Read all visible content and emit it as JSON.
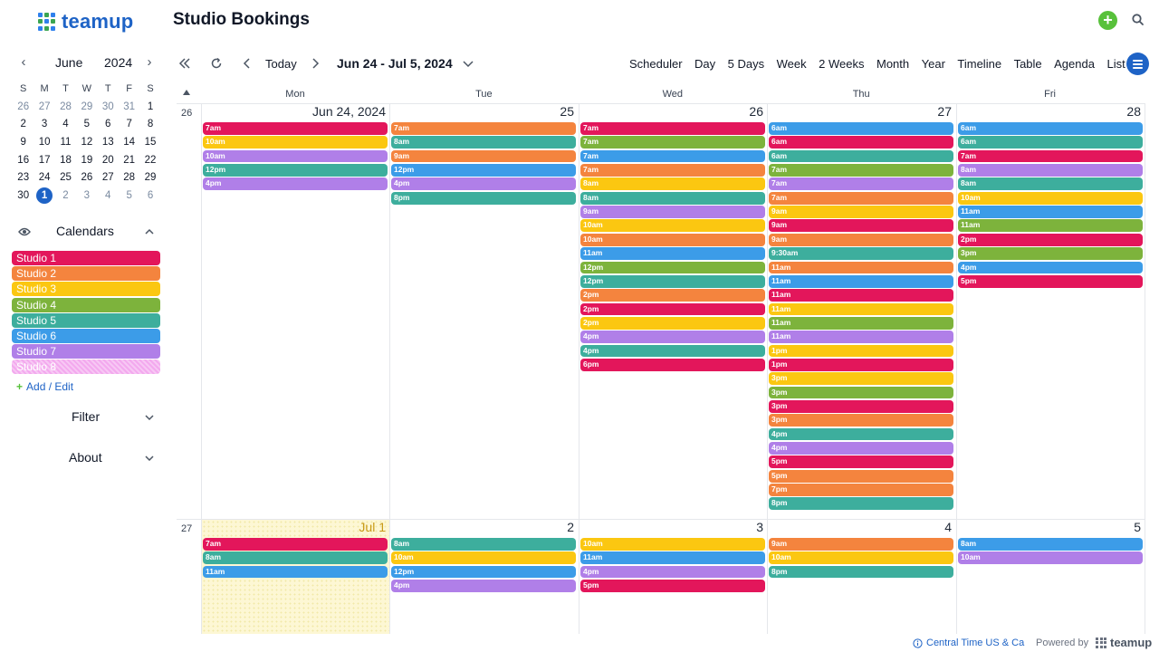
{
  "header": {
    "logo_text": "teamup",
    "title": "Studio Bookings",
    "add_icon": "plus-circle-icon",
    "search_icon": "search-icon"
  },
  "colors": {
    "Studio 1": "#e3165b",
    "Studio 2": "#f4843e",
    "Studio 3": "#fbc711",
    "Studio 4": "#7db33c",
    "Studio 5": "#3dae9d",
    "Studio 6": "#3c9ce8",
    "Studio 7": "#b07fe8",
    "Studio 8": "#f3a9ee",
    "accent": "#1e63c6",
    "green": "#58c13b"
  },
  "mini_calendar": {
    "month": "June",
    "year": "2024",
    "weekdays": [
      "S",
      "M",
      "T",
      "W",
      "T",
      "F",
      "S"
    ],
    "weeks": [
      [
        "26",
        "27",
        "28",
        "29",
        "30",
        "31",
        "1"
      ],
      [
        "2",
        "3",
        "4",
        "5",
        "6",
        "7",
        "8"
      ],
      [
        "9",
        "10",
        "11",
        "12",
        "13",
        "14",
        "15"
      ],
      [
        "16",
        "17",
        "18",
        "19",
        "20",
        "21",
        "22"
      ],
      [
        "23",
        "24",
        "25",
        "26",
        "27",
        "28",
        "29"
      ],
      [
        "30",
        "1",
        "2",
        "3",
        "4",
        "5",
        "6"
      ]
    ],
    "today": "1"
  },
  "sidebar": {
    "calendars_label": "Calendars",
    "calendars": [
      {
        "name": "Studio 1",
        "color": "#e3165b"
      },
      {
        "name": "Studio 2",
        "color": "#f4843e"
      },
      {
        "name": "Studio 3",
        "color": "#fbc711"
      },
      {
        "name": "Studio 4",
        "color": "#7db33c"
      },
      {
        "name": "Studio 5",
        "color": "#3dae9d"
      },
      {
        "name": "Studio 6",
        "color": "#3c9ce8"
      },
      {
        "name": "Studio 7",
        "color": "#b07fe8"
      },
      {
        "name": "Studio 8",
        "color": "#f3a9ee"
      }
    ],
    "add_edit_label": "Add / Edit",
    "filter_label": "Filter",
    "about_label": "About"
  },
  "toolbar": {
    "today_label": "Today",
    "date_range": "Jun 24 - Jul 5, 2024",
    "views": [
      "Scheduler",
      "Day",
      "5 Days",
      "Week",
      "2 Weeks",
      "Month",
      "Year",
      "Timeline",
      "Table",
      "Agenda",
      "List"
    ]
  },
  "calendar": {
    "weekday_headers": [
      "Mon",
      "Tue",
      "Wed",
      "Thu",
      "Fri"
    ],
    "weeks": [
      {
        "week_number": "26",
        "days": [
          {
            "label": "Jun 24, 2024",
            "today": false,
            "events": [
              {
                "time": "7am",
                "cal": "Studio 1"
              },
              {
                "time": "10am",
                "cal": "Studio 3"
              },
              {
                "time": "10am",
                "cal": "Studio 7"
              },
              {
                "time": "12pm",
                "cal": "Studio 5"
              },
              {
                "time": "4pm",
                "cal": "Studio 7"
              }
            ]
          },
          {
            "label": "25",
            "today": false,
            "events": [
              {
                "time": "7am",
                "cal": "Studio 2"
              },
              {
                "time": "8am",
                "cal": "Studio 5"
              },
              {
                "time": "9am",
                "cal": "Studio 2"
              },
              {
                "time": "12pm",
                "cal": "Studio 6"
              },
              {
                "time": "4pm",
                "cal": "Studio 7"
              },
              {
                "time": "8pm",
                "cal": "Studio 5"
              }
            ]
          },
          {
            "label": "26",
            "today": false,
            "events": [
              {
                "time": "7am",
                "cal": "Studio 1"
              },
              {
                "time": "7am",
                "cal": "Studio 4"
              },
              {
                "time": "7am",
                "cal": "Studio 6"
              },
              {
                "time": "7am",
                "cal": "Studio 2"
              },
              {
                "time": "8am",
                "cal": "Studio 3"
              },
              {
                "time": "8am",
                "cal": "Studio 5"
              },
              {
                "time": "9am",
                "cal": "Studio 7"
              },
              {
                "time": "10am",
                "cal": "Studio 3"
              },
              {
                "time": "10am",
                "cal": "Studio 2"
              },
              {
                "time": "11am",
                "cal": "Studio 6"
              },
              {
                "time": "12pm",
                "cal": "Studio 4"
              },
              {
                "time": "12pm",
                "cal": "Studio 5"
              },
              {
                "time": "2pm",
                "cal": "Studio 2"
              },
              {
                "time": "2pm",
                "cal": "Studio 1"
              },
              {
                "time": "2pm",
                "cal": "Studio 3"
              },
              {
                "time": "4pm",
                "cal": "Studio 7"
              },
              {
                "time": "4pm",
                "cal": "Studio 5"
              },
              {
                "time": "6pm",
                "cal": "Studio 1"
              }
            ]
          },
          {
            "label": "27",
            "today": false,
            "events": [
              {
                "time": "6am",
                "cal": "Studio 6"
              },
              {
                "time": "6am",
                "cal": "Studio 1"
              },
              {
                "time": "6am",
                "cal": "Studio 5"
              },
              {
                "time": "7am",
                "cal": "Studio 4"
              },
              {
                "time": "7am",
                "cal": "Studio 7"
              },
              {
                "time": "7am",
                "cal": "Studio 2"
              },
              {
                "time": "9am",
                "cal": "Studio 3"
              },
              {
                "time": "9am",
                "cal": "Studio 1"
              },
              {
                "time": "9am",
                "cal": "Studio 2"
              },
              {
                "time": "9:30am",
                "cal": "Studio 5"
              },
              {
                "time": "11am",
                "cal": "Studio 2"
              },
              {
                "time": "11am",
                "cal": "Studio 6"
              },
              {
                "time": "11am",
                "cal": "Studio 1"
              },
              {
                "time": "11am",
                "cal": "Studio 3"
              },
              {
                "time": "11am",
                "cal": "Studio 4"
              },
              {
                "time": "11am",
                "cal": "Studio 7"
              },
              {
                "time": "1pm",
                "cal": "Studio 3"
              },
              {
                "time": "1pm",
                "cal": "Studio 1"
              },
              {
                "time": "3pm",
                "cal": "Studio 3"
              },
              {
                "time": "3pm",
                "cal": "Studio 4"
              },
              {
                "time": "3pm",
                "cal": "Studio 1"
              },
              {
                "time": "3pm",
                "cal": "Studio 2"
              },
              {
                "time": "4pm",
                "cal": "Studio 5"
              },
              {
                "time": "4pm",
                "cal": "Studio 7"
              },
              {
                "time": "5pm",
                "cal": "Studio 1"
              },
              {
                "time": "5pm",
                "cal": "Studio 2"
              },
              {
                "time": "7pm",
                "cal": "Studio 2"
              },
              {
                "time": "8pm",
                "cal": "Studio 5"
              }
            ]
          },
          {
            "label": "28",
            "today": false,
            "events": [
              {
                "time": "6am",
                "cal": "Studio 6"
              },
              {
                "time": "6am",
                "cal": "Studio 5"
              },
              {
                "time": "7am",
                "cal": "Studio 1"
              },
              {
                "time": "8am",
                "cal": "Studio 7"
              },
              {
                "time": "8am",
                "cal": "Studio 5"
              },
              {
                "time": "10am",
                "cal": "Studio 3"
              },
              {
                "time": "11am",
                "cal": "Studio 6"
              },
              {
                "time": "11am",
                "cal": "Studio 4"
              },
              {
                "time": "2pm",
                "cal": "Studio 1"
              },
              {
                "time": "3pm",
                "cal": "Studio 4"
              },
              {
                "time": "4pm",
                "cal": "Studio 6"
              },
              {
                "time": "5pm",
                "cal": "Studio 1"
              }
            ]
          }
        ]
      },
      {
        "week_number": "27",
        "days": [
          {
            "label": "Jul 1",
            "today": true,
            "events": [
              {
                "time": "7am",
                "cal": "Studio 1"
              },
              {
                "time": "8am",
                "cal": "Studio 5"
              },
              {
                "time": "11am",
                "cal": "Studio 6"
              }
            ]
          },
          {
            "label": "2",
            "today": false,
            "events": [
              {
                "time": "8am",
                "cal": "Studio 5"
              },
              {
                "time": "10am",
                "cal": "Studio 3"
              },
              {
                "time": "12pm",
                "cal": "Studio 6"
              },
              {
                "time": "4pm",
                "cal": "Studio 7"
              }
            ]
          },
          {
            "label": "3",
            "today": false,
            "events": [
              {
                "time": "10am",
                "cal": "Studio 3"
              },
              {
                "time": "11am",
                "cal": "Studio 6"
              },
              {
                "time": "4pm",
                "cal": "Studio 7"
              },
              {
                "time": "5pm",
                "cal": "Studio 1"
              }
            ]
          },
          {
            "label": "4",
            "today": false,
            "events": [
              {
                "time": "9am",
                "cal": "Studio 2"
              },
              {
                "time": "10am",
                "cal": "Studio 3"
              },
              {
                "time": "8pm",
                "cal": "Studio 5"
              }
            ]
          },
          {
            "label": "5",
            "today": false,
            "events": [
              {
                "time": "8am",
                "cal": "Studio 6"
              },
              {
                "time": "10am",
                "cal": "Studio 7"
              }
            ]
          }
        ]
      }
    ]
  },
  "footer": {
    "timezone": "Central Time US & Ca",
    "powered_by": "Powered by",
    "brand": "teamup"
  }
}
